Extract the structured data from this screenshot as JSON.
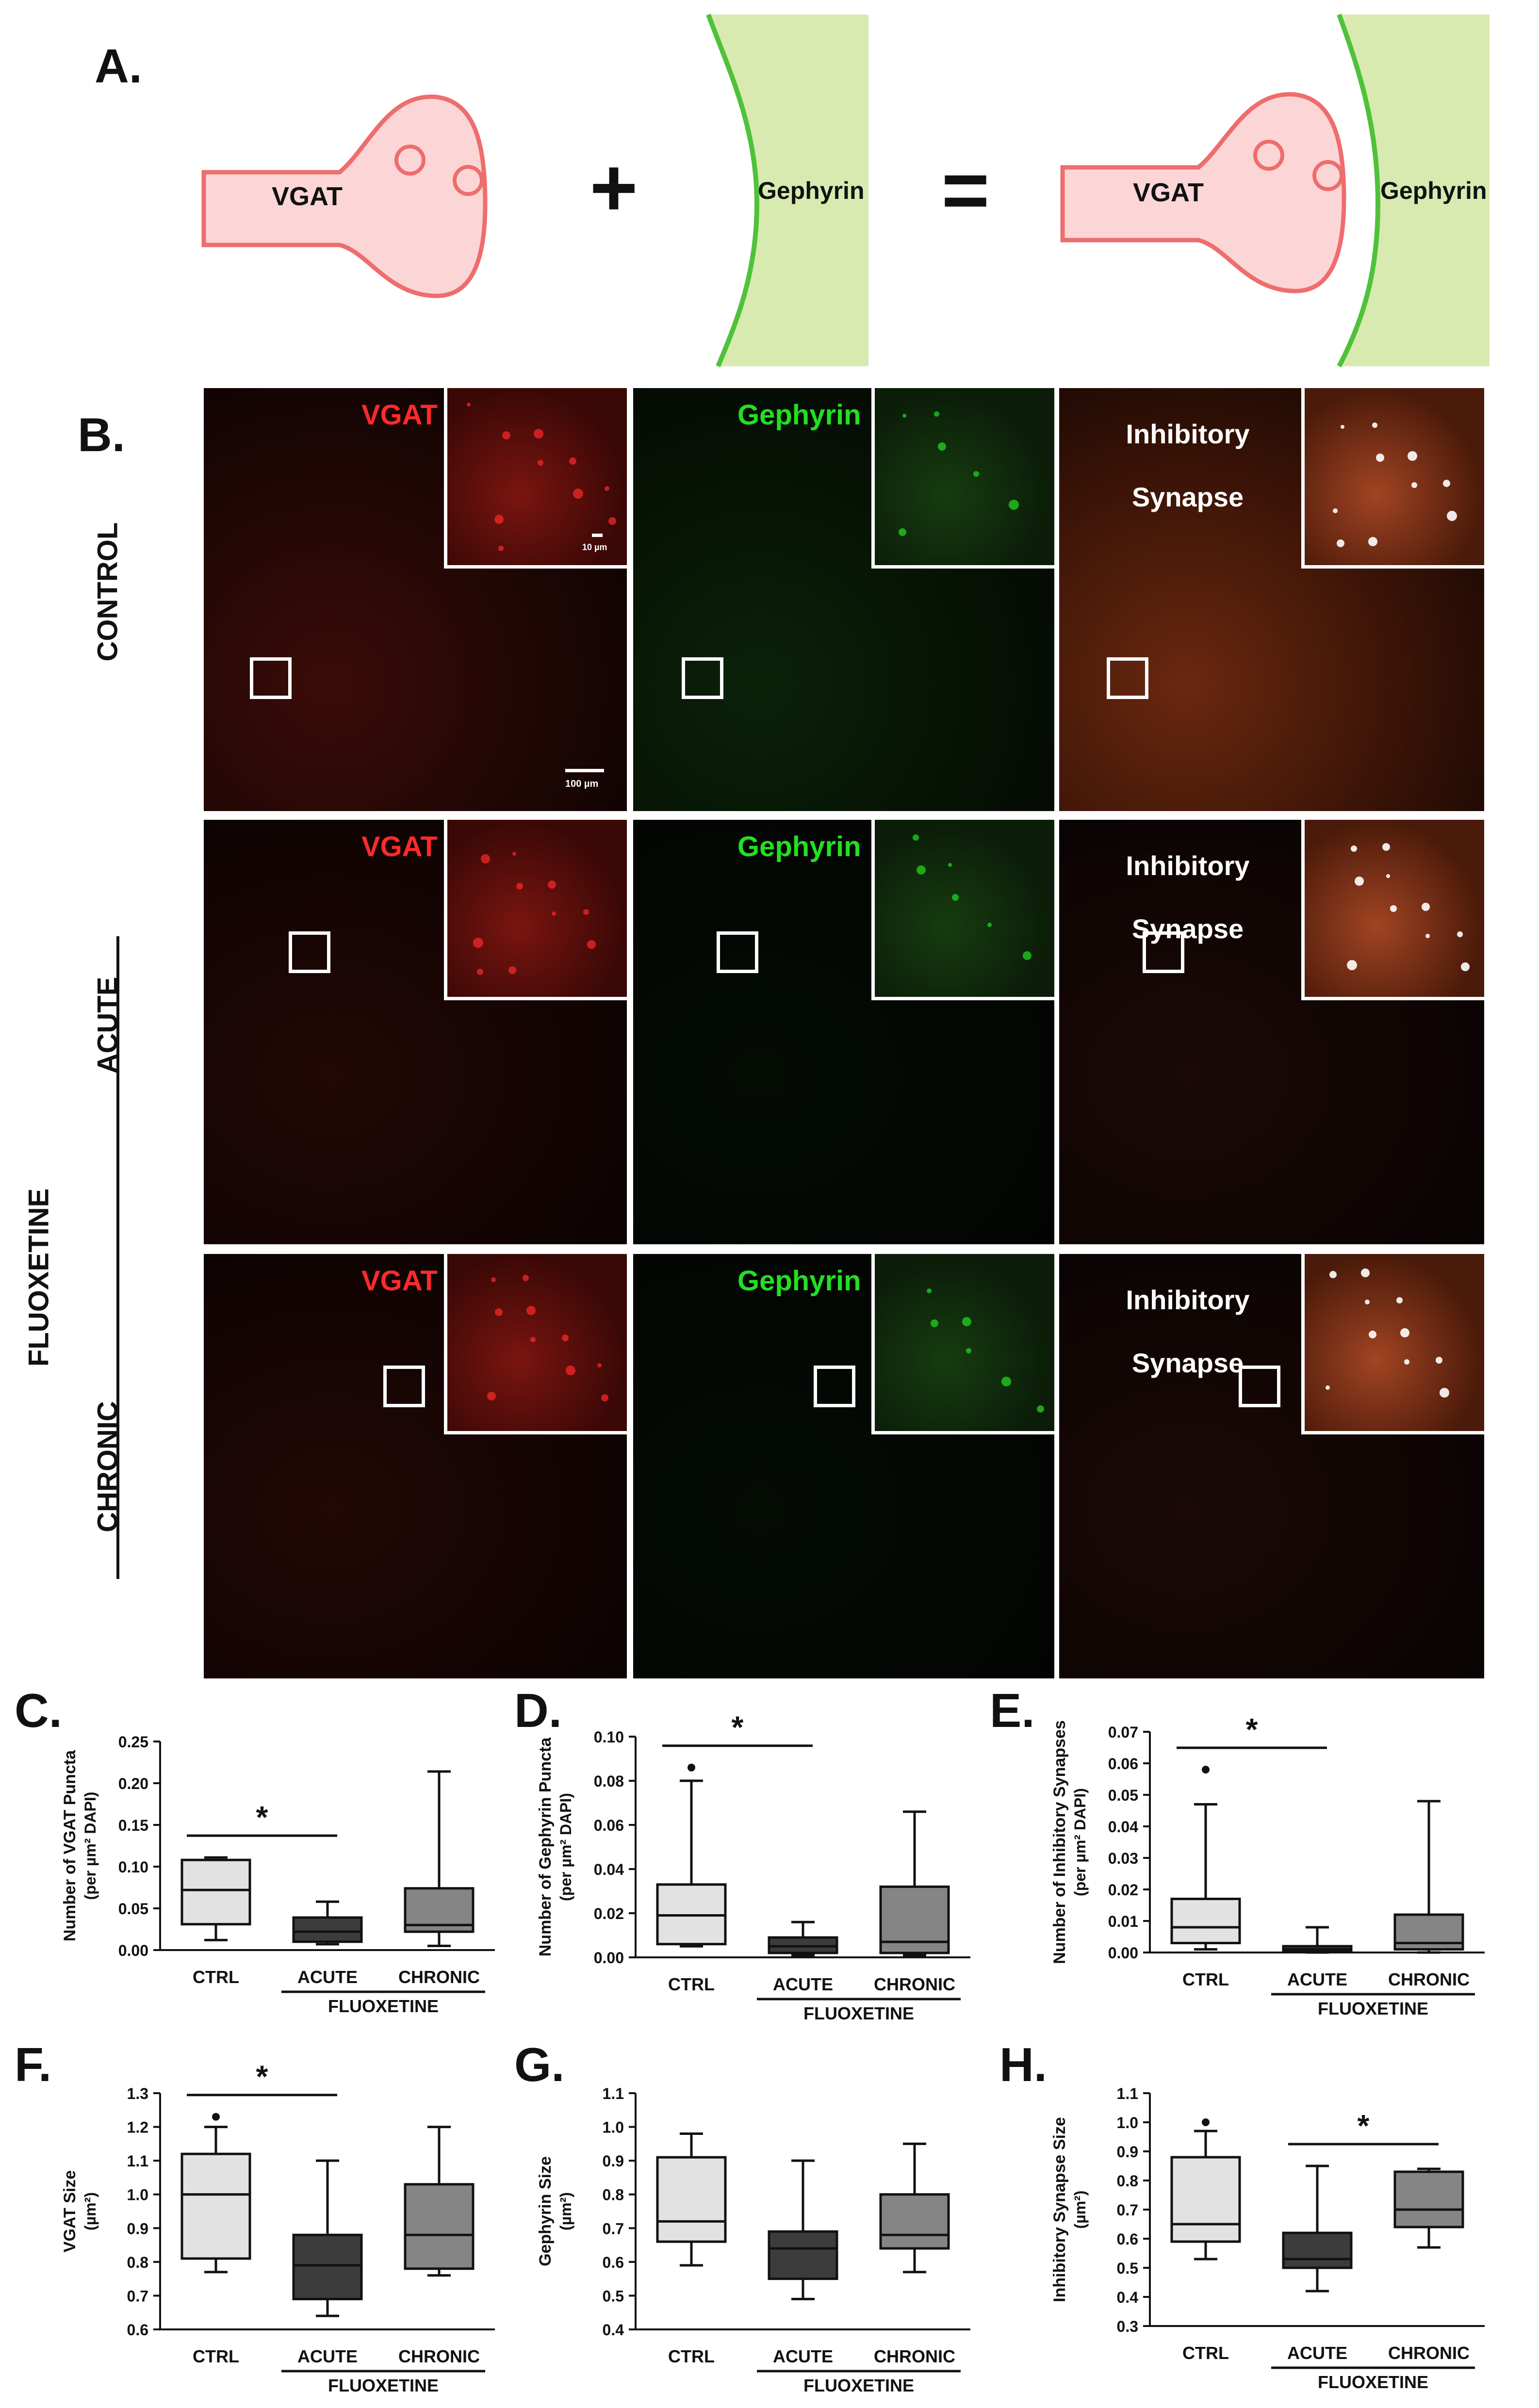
{
  "panel_labels": {
    "a": "A.",
    "b": "B.",
    "c": "C.",
    "d": "D.",
    "e": "E.",
    "f": "F.",
    "g": "G.",
    "h": "H."
  },
  "schematic": {
    "vgat": "VGAT",
    "plus": "+",
    "gephyrin": "Gephyrin",
    "equals": "=",
    "vgat2": "VGAT",
    "gephyrin2": "Gephyrin"
  },
  "micrographs": {
    "columns": {
      "vgat": "VGAT",
      "gephyrin": "Gephyrin",
      "synapse_line1": "Inhibitory",
      "synapse_line2": "Synapse"
    },
    "rows": {
      "control": "CONTROL",
      "acute": "ACUTE",
      "chronic": "CHRONIC",
      "group": "FLUOXETINE"
    },
    "scale_small": "10 µm",
    "scale_large": "100 µm",
    "colors": {
      "vgat": "#ff2a2a",
      "gephyrin": "#22e022",
      "synapse": "#ffffff"
    }
  },
  "chart_data": [
    {
      "panel": "C.",
      "type": "box",
      "ylabel_line1": "Number of VGAT Puncta",
      "ylabel_line2": "(per µm² DAPI)",
      "categories": [
        "CTRL",
        "ACUTE",
        "CHRONIC"
      ],
      "group_label": "FLUOXETINE",
      "ylim": [
        0,
        0.25
      ],
      "yticks": [
        "0.00",
        "0.05",
        "0.10",
        "0.15",
        "0.20",
        "0.25"
      ],
      "boxes": [
        {
          "min": 0.012,
          "q1": 0.031,
          "median": 0.072,
          "q3": 0.108,
          "max": 0.111,
          "outliers": []
        },
        {
          "min": 0.007,
          "q1": 0.01,
          "median": 0.022,
          "q3": 0.039,
          "max": 0.058,
          "outliers": []
        },
        {
          "min": 0.005,
          "q1": 0.022,
          "median": 0.03,
          "q3": 0.074,
          "max": 0.214,
          "outliers": []
        }
      ],
      "fills": [
        "#e2e2e2",
        "#3c3c3c",
        "#858585"
      ],
      "sig": {
        "from": 0,
        "to": 1,
        "label": "*"
      }
    },
    {
      "panel": "D.",
      "type": "box",
      "ylabel_line1": "Number of Gephyrin Puncta",
      "ylabel_line2": "(per µm² DAPI)",
      "categories": [
        "CTRL",
        "ACUTE",
        "CHRONIC"
      ],
      "group_label": "FLUOXETINE",
      "ylim": [
        0,
        0.1
      ],
      "yticks": [
        "0.00",
        "0.02",
        "0.04",
        "0.06",
        "0.08",
        "0.10"
      ],
      "boxes": [
        {
          "min": 0.005,
          "q1": 0.006,
          "median": 0.019,
          "q3": 0.033,
          "max": 0.08,
          "outliers": [
            0.086
          ]
        },
        {
          "min": 0.001,
          "q1": 0.002,
          "median": 0.005,
          "q3": 0.009,
          "max": 0.016,
          "outliers": []
        },
        {
          "min": 0.001,
          "q1": 0.002,
          "median": 0.007,
          "q3": 0.032,
          "max": 0.066,
          "outliers": []
        }
      ],
      "fills": [
        "#e2e2e2",
        "#3c3c3c",
        "#858585"
      ],
      "sig": {
        "from": 0,
        "to": 1,
        "label": "*"
      }
    },
    {
      "panel": "E.",
      "type": "box",
      "ylabel_line1": "Number of Inhibitory Synapses",
      "ylabel_line2": "(per µm² DAPI)",
      "categories": [
        "CTRL",
        "ACUTE",
        "CHRONIC"
      ],
      "group_label": "FLUOXETINE",
      "ylim": [
        0,
        0.07
      ],
      "yticks": [
        "0.00",
        "0.01",
        "0.02",
        "0.03",
        "0.04",
        "0.05",
        "0.06",
        "0.07"
      ],
      "boxes": [
        {
          "min": 0.001,
          "q1": 0.003,
          "median": 0.008,
          "q3": 0.017,
          "max": 0.047,
          "outliers": [
            0.058
          ]
        },
        {
          "min": 0.0,
          "q1": 0.0005,
          "median": 0.001,
          "q3": 0.002,
          "max": 0.008,
          "outliers": []
        },
        {
          "min": 0.0,
          "q1": 0.001,
          "median": 0.003,
          "q3": 0.012,
          "max": 0.048,
          "outliers": []
        }
      ],
      "fills": [
        "#e2e2e2",
        "#3c3c3c",
        "#858585"
      ],
      "sig": {
        "from": 0,
        "to": 1,
        "label": "*"
      }
    },
    {
      "panel": "F.",
      "type": "box",
      "ylabel_line1": "VGAT Size",
      "ylabel_line2": "(µm²)",
      "categories": [
        "CTRL",
        "ACUTE",
        "CHRONIC"
      ],
      "group_label": "FLUOXETINE",
      "ylim": [
        0.6,
        1.3
      ],
      "yticks": [
        "0.6",
        "0.7",
        "0.8",
        "0.9",
        "1.0",
        "1.1",
        "1.2",
        "1.3"
      ],
      "boxes": [
        {
          "min": 0.77,
          "q1": 0.81,
          "median": 1.0,
          "q3": 1.12,
          "max": 1.2,
          "outliers": [
            1.23
          ]
        },
        {
          "min": 0.64,
          "q1": 0.69,
          "median": 0.79,
          "q3": 0.88,
          "max": 1.1,
          "outliers": []
        },
        {
          "min": 0.76,
          "q1": 0.78,
          "median": 0.88,
          "q3": 1.03,
          "max": 1.2,
          "outliers": []
        }
      ],
      "fills": [
        "#e2e2e2",
        "#3c3c3c",
        "#858585"
      ],
      "sig": {
        "from": 0,
        "to": 1,
        "label": "*"
      }
    },
    {
      "panel": "G.",
      "type": "box",
      "ylabel_line1": "Gephyrin Size",
      "ylabel_line2": "(µm²)",
      "categories": [
        "CTRL",
        "ACUTE",
        "CHRONIC"
      ],
      "group_label": "FLUOXETINE",
      "ylim": [
        0.4,
        1.1
      ],
      "yticks": [
        "0.4",
        "0.5",
        "0.6",
        "0.7",
        "0.8",
        "0.9",
        "1.0",
        "1.1"
      ],
      "boxes": [
        {
          "min": 0.59,
          "q1": 0.66,
          "median": 0.72,
          "q3": 0.91,
          "max": 0.98,
          "outliers": []
        },
        {
          "min": 0.49,
          "q1": 0.55,
          "median": 0.64,
          "q3": 0.69,
          "max": 0.9,
          "outliers": []
        },
        {
          "min": 0.57,
          "q1": 0.64,
          "median": 0.68,
          "q3": 0.8,
          "max": 0.95,
          "outliers": []
        }
      ],
      "fills": [
        "#e2e2e2",
        "#3c3c3c",
        "#858585"
      ],
      "sig": null
    },
    {
      "panel": "H.",
      "type": "box",
      "ylabel_line1": "Inhibitory Synapse Size",
      "ylabel_line2": "(µm²)",
      "categories": [
        "CTRL",
        "ACUTE",
        "CHRONIC"
      ],
      "group_label": "FLUOXETINE",
      "ylim": [
        0.3,
        1.1
      ],
      "yticks": [
        "0.3",
        "0.4",
        "0.5",
        "0.6",
        "0.7",
        "0.8",
        "0.9",
        "1.0",
        "1.1"
      ],
      "boxes": [
        {
          "min": 0.53,
          "q1": 0.59,
          "median": 0.65,
          "q3": 0.88,
          "max": 0.97,
          "outliers": [
            1.0
          ]
        },
        {
          "min": 0.42,
          "q1": 0.5,
          "median": 0.53,
          "q3": 0.62,
          "max": 0.85,
          "outliers": []
        },
        {
          "min": 0.57,
          "q1": 0.64,
          "median": 0.7,
          "q3": 0.83,
          "max": 0.84,
          "outliers": []
        }
      ],
      "fills": [
        "#e2e2e2",
        "#3c3c3c",
        "#858585"
      ],
      "sig": {
        "from": 1,
        "to": 2,
        "label": "*"
      }
    }
  ]
}
